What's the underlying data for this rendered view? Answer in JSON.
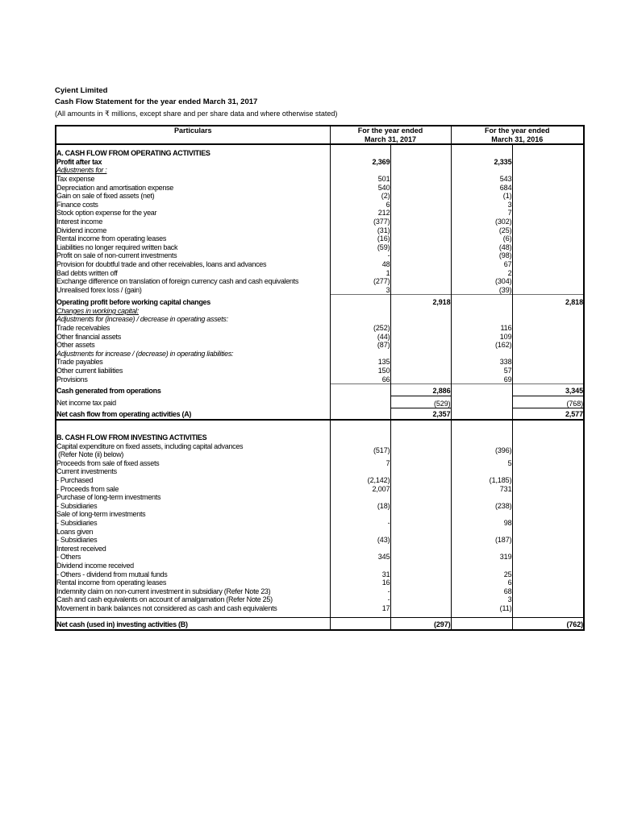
{
  "page": {
    "title": "Cyient Limited",
    "subtitle": "Cash Flow Statement for the year ended March 31, 2017",
    "note": "(All amounts in ₹ millions, except share and per share data and where otherwise stated)"
  },
  "table": {
    "header": {
      "particulars": "Particulars",
      "fy2017_line1": "For the  year ended",
      "fy2017_line2": "March 31, 2017",
      "fy2016_line1": "For the  year ended",
      "fy2016_line2": "March 31, 2016"
    },
    "rows": [
      {
        "label": "",
        "indent": 0,
        "values": [
          "",
          "",
          "",
          ""
        ],
        "height": 5
      },
      {
        "label": "A. CASH FLOW FROM OPERATING ACTIVITIES",
        "indent": 0,
        "style": "b",
        "values": [
          "",
          "",
          "",
          ""
        ]
      },
      {
        "label": "Profit after tax",
        "indent": 1,
        "style": "b",
        "values": [
          "2,369",
          "",
          "2,335",
          ""
        ],
        "bold_values": true
      },
      {
        "label": "Adjustments for :",
        "indent": 1,
        "style": "iu",
        "values": [
          "",
          "",
          "",
          ""
        ]
      },
      {
        "label": "Tax expense",
        "indent": 2,
        "values": [
          "501",
          "",
          "543",
          ""
        ]
      },
      {
        "label": "Depreciation and amortisation expense",
        "indent": 2,
        "values": [
          "540",
          "",
          "684",
          ""
        ]
      },
      {
        "label": "Gain on sale of fixed assets (net)",
        "indent": 2,
        "values": [
          "(2)",
          "",
          "(1)",
          ""
        ]
      },
      {
        "label": "Finance costs",
        "indent": 2,
        "values": [
          "6",
          "",
          "3",
          ""
        ]
      },
      {
        "label": "Stock option expense for the year",
        "indent": 2,
        "values": [
          "212",
          "",
          "7",
          ""
        ]
      },
      {
        "label": "Interest income",
        "indent": 2,
        "values": [
          "(377)",
          "",
          "(302)",
          ""
        ]
      },
      {
        "label": "Dividend income",
        "indent": 2,
        "values": [
          "(31)",
          "",
          "(25)",
          ""
        ]
      },
      {
        "label": "Rental income from operating leases",
        "indent": 2,
        "values": [
          "(16)",
          "",
          "(6)",
          ""
        ]
      },
      {
        "label": "Liabilities no longer required written back",
        "indent": 2,
        "values": [
          "(59)",
          "",
          "(48)",
          ""
        ]
      },
      {
        "label": "Profit on sale of non-current investments",
        "indent": 2,
        "values": [
          "-",
          "",
          "(98)",
          ""
        ]
      },
      {
        "label": "Provision for doubtful trade and other receivables, loans and advances",
        "indent": 2,
        "values": [
          "48",
          "",
          "67",
          ""
        ]
      },
      {
        "label": "Bad debts written off",
        "indent": 2,
        "values": [
          "1",
          "",
          "2",
          ""
        ]
      },
      {
        "label": "Exchange difference on translation of foreign currency cash and cash equivalents",
        "indent": 2,
        "values": [
          "(277)",
          "",
          "(304)",
          ""
        ]
      },
      {
        "label": "Unrealised forex loss / (gain)",
        "indent": 2,
        "values": [
          "3",
          "",
          "(39)",
          ""
        ]
      },
      {
        "label": "Operating profit before working capital changes",
        "indent": 1,
        "style": "b",
        "values": [
          "",
          "2,918",
          "",
          "2,818"
        ],
        "bold_values": true,
        "top": "values",
        "pad_top": 4
      },
      {
        "label": "Changes in working capital:",
        "indent": 1,
        "style": "iu",
        "values": [
          "",
          "",
          "",
          ""
        ]
      },
      {
        "label": "Adjustments for (increase) / decrease in operating assets:",
        "indent": 1,
        "style": "i",
        "values": [
          "",
          "",
          "",
          ""
        ]
      },
      {
        "label": "Trade receivables",
        "indent": 2,
        "values": [
          "(252)",
          "",
          "116",
          ""
        ]
      },
      {
        "label": "Other financial assets",
        "indent": 2,
        "values": [
          "(44)",
          "",
          "109",
          ""
        ]
      },
      {
        "label": "Other assets",
        "indent": 2,
        "values": [
          "(87)",
          "",
          "(162)",
          ""
        ]
      },
      {
        "label": "Adjustments for increase / (decrease) in operating liabilities:",
        "indent": 1,
        "style": "i",
        "values": [
          "",
          "",
          "",
          ""
        ]
      },
      {
        "label": "Trade payables",
        "indent": 2,
        "values": [
          "135",
          "",
          "338",
          ""
        ]
      },
      {
        "label": "Other current liabilities",
        "indent": 2,
        "values": [
          "150",
          "",
          "57",
          ""
        ]
      },
      {
        "label": "Provisions",
        "indent": 2,
        "values": [
          "66",
          "",
          "69",
          ""
        ]
      },
      {
        "label": "Cash generated from operations",
        "indent": 1,
        "style": "b",
        "values": [
          "",
          "2,886",
          "",
          "3,345"
        ],
        "bold_values": true,
        "top": "values",
        "pad_top": 3
      },
      {
        "label": "Net income tax paid",
        "indent": 1,
        "values": [
          "",
          "(529)",
          "",
          "(768)"
        ],
        "top": "outer",
        "pad_top": 4
      },
      {
        "label": "Net cash flow from operating activities (A)",
        "indent": 0,
        "style": "b",
        "values": [
          "",
          "2,357",
          "",
          "2,577"
        ],
        "bold_values": true,
        "top": "outer",
        "bottom": "full",
        "pad_top": 2
      },
      {
        "label": "",
        "indent": 0,
        "values": [
          "",
          "",
          "",
          ""
        ],
        "height": 16
      },
      {
        "label": "B. CASH FLOW FROM INVESTING ACTIVITIES",
        "indent": 0,
        "style": "b",
        "values": [
          "",
          "",
          "",
          ""
        ]
      },
      {
        "label": "Capital expenditure on fixed assets, including capital advances",
        "label2": "(Refer Note (ii) below)",
        "indent": 1,
        "values": [
          "(517)",
          "",
          "(396)",
          ""
        ],
        "vmid": true
      },
      {
        "label": "Proceeds from sale of fixed assets",
        "indent": 1,
        "values": [
          "7",
          "",
          "5",
          ""
        ]
      },
      {
        "label": "Current investments",
        "indent": 1,
        "values": [
          "",
          "",
          "",
          ""
        ]
      },
      {
        "label": "- Purchased",
        "indent": 1.5,
        "values": [
          "(2,142)",
          "",
          "(1,185)",
          ""
        ]
      },
      {
        "label": "- Proceeds from sale",
        "indent": 1.5,
        "values": [
          "2,007",
          "",
          "731",
          ""
        ]
      },
      {
        "label": "Purchase of long-term investments",
        "indent": 1,
        "values": [
          "",
          "",
          "",
          ""
        ]
      },
      {
        "label": "- Subsidiaries",
        "indent": 1.5,
        "values": [
          "(18)",
          "",
          "(238)",
          ""
        ]
      },
      {
        "label": "Sale of long-term investments",
        "indent": 1,
        "values": [
          "",
          "",
          "",
          ""
        ]
      },
      {
        "label": "- Subsidiaries",
        "indent": 1.5,
        "values": [
          "-",
          "",
          "98",
          ""
        ]
      },
      {
        "label": "Loans given",
        "indent": 1,
        "values": [
          "",
          "",
          "",
          ""
        ]
      },
      {
        "label": "- Subsidiaries",
        "indent": 1.5,
        "values": [
          "(43)",
          "",
          "(187)",
          ""
        ]
      },
      {
        "label": "Interest received",
        "indent": 1,
        "values": [
          "",
          "",
          "",
          ""
        ]
      },
      {
        "label": "- Others",
        "indent": 1.5,
        "values": [
          "345",
          "",
          "319",
          ""
        ]
      },
      {
        "label": "Dividend income received",
        "indent": 1,
        "values": [
          "",
          "",
          "",
          ""
        ]
      },
      {
        "label": "- Others - dividend from mutual funds",
        "indent": 1.5,
        "values": [
          "31",
          "",
          "25",
          ""
        ]
      },
      {
        "label": "Rental income from operating leases",
        "indent": 1,
        "values": [
          "16",
          "",
          "6",
          ""
        ]
      },
      {
        "label": "Indemnity claim on non-current investment in subsidiary (Refer Note 23)",
        "indent": 1,
        "values": [
          "-",
          "",
          "68",
          ""
        ]
      },
      {
        "label": "Cash and cash equivalents on account of amalgamation (Refer Note 25)",
        "indent": 1,
        "values": [
          "-",
          "",
          "3",
          ""
        ]
      },
      {
        "label": "Movement in bank balances not considered as cash and cash equivalents",
        "indent": 1,
        "values": [
          "17",
          "",
          "(11)",
          ""
        ]
      },
      {
        "label": "",
        "indent": 0,
        "values": [
          "",
          "",
          "",
          ""
        ],
        "height": 6
      },
      {
        "label": "Net cash (used in) investing activities (B)",
        "indent": 0,
        "style": "b",
        "values": [
          "",
          "(297)",
          "",
          "(762)"
        ],
        "bold_values": true,
        "top": "full",
        "pad_top": 3
      }
    ]
  }
}
